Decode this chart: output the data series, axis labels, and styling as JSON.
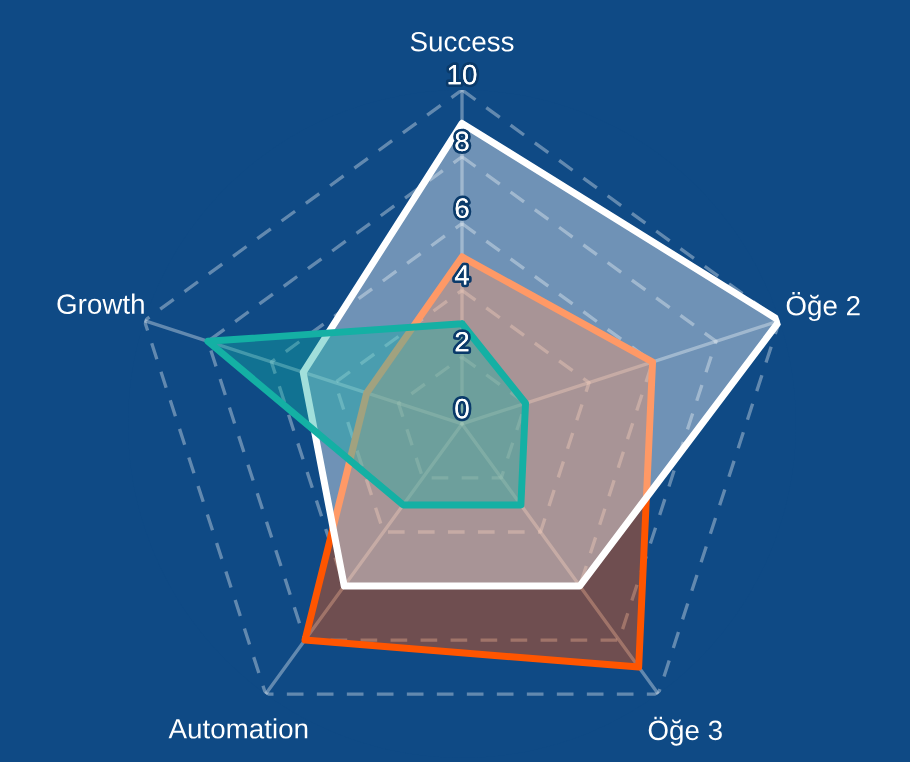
{
  "chart_data": {
    "type": "radar",
    "categories": [
      "Success",
      "Öğe 2",
      "Öğe 3",
      "Automation",
      "Growth"
    ],
    "ylim": [
      0,
      10
    ],
    "yticks": [
      0,
      2,
      4,
      6,
      8,
      10
    ],
    "grid": true,
    "legend": false,
    "series": [
      {
        "color": "#ff5500",
        "values": [
          5,
          6,
          9,
          8,
          3
        ]
      },
      {
        "color": "#ffffff",
        "values": [
          9,
          10,
          6,
          6,
          5
        ]
      },
      {
        "color": "#14b0a4",
        "values": [
          3,
          2,
          3,
          3,
          8
        ]
      }
    ]
  }
}
